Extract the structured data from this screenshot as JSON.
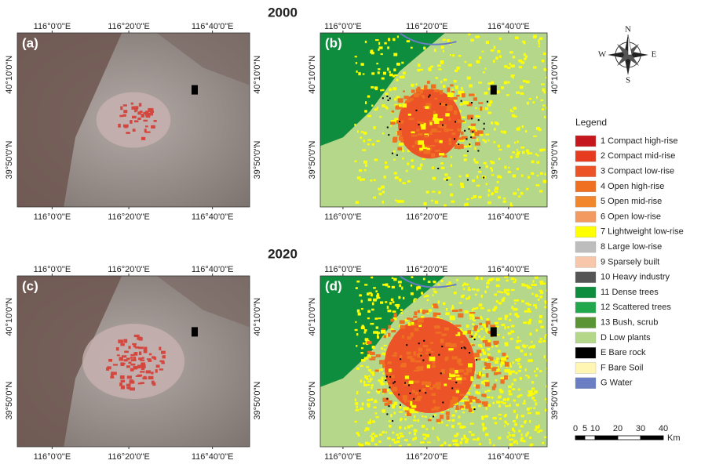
{
  "figure": {
    "titles": [
      "2000",
      "2020"
    ],
    "lon_ticks": [
      "116°0'0\"E",
      "116°20'0\"E",
      "116°40'0\"E"
    ],
    "lat_ticks": [
      "40°10'0\"N",
      "39°50'0\"N"
    ],
    "panels": [
      {
        "label": "(a)",
        "kind": "satellite"
      },
      {
        "label": "(b)",
        "kind": "lcz"
      },
      {
        "label": "(c)",
        "kind": "satellite"
      },
      {
        "label": "(d)",
        "kind": "lcz"
      }
    ],
    "compass": [
      "N",
      "S",
      "W",
      "E"
    ],
    "legend": {
      "title": "Legend",
      "items": [
        {
          "label": "1 Compact high-rise",
          "color": "#c4161c"
        },
        {
          "label": "2 Compact mid-rise",
          "color": "#e63b1e"
        },
        {
          "label": "3 Compact low-rise",
          "color": "#ec5427"
        },
        {
          "label": "4 Open high-rise",
          "color": "#ee7020"
        },
        {
          "label": "5 Open mid-rise",
          "color": "#f2862c"
        },
        {
          "label": "6 Open low-rise",
          "color": "#f39a60"
        },
        {
          "label": "7 Lightweight low-rise",
          "color": "#ffff00"
        },
        {
          "label": "8 Large low-rise",
          "color": "#bdbdbd"
        },
        {
          "label": "9 Sparsely built",
          "color": "#f8c7ab"
        },
        {
          "label": "10 Heavy industry",
          "color": "#555555"
        },
        {
          "label": "11 Dense trees",
          "color": "#0f8d3f"
        },
        {
          "label": "12 Scattered trees",
          "color": "#21a84c"
        },
        {
          "label": "13 Bush, scrub",
          "color": "#5a9435"
        },
        {
          "label": "D Low plants",
          "color": "#b4d78a"
        },
        {
          "label": "E Bare rock",
          "color": "#000000"
        },
        {
          "label": "F Bare Soil",
          "color": "#fff6b4"
        },
        {
          "label": "G Water",
          "color": "#6a7ec4"
        }
      ]
    },
    "scale": {
      "labels": [
        0,
        5,
        10,
        20,
        30,
        40
      ],
      "unit": "Km"
    }
  }
}
